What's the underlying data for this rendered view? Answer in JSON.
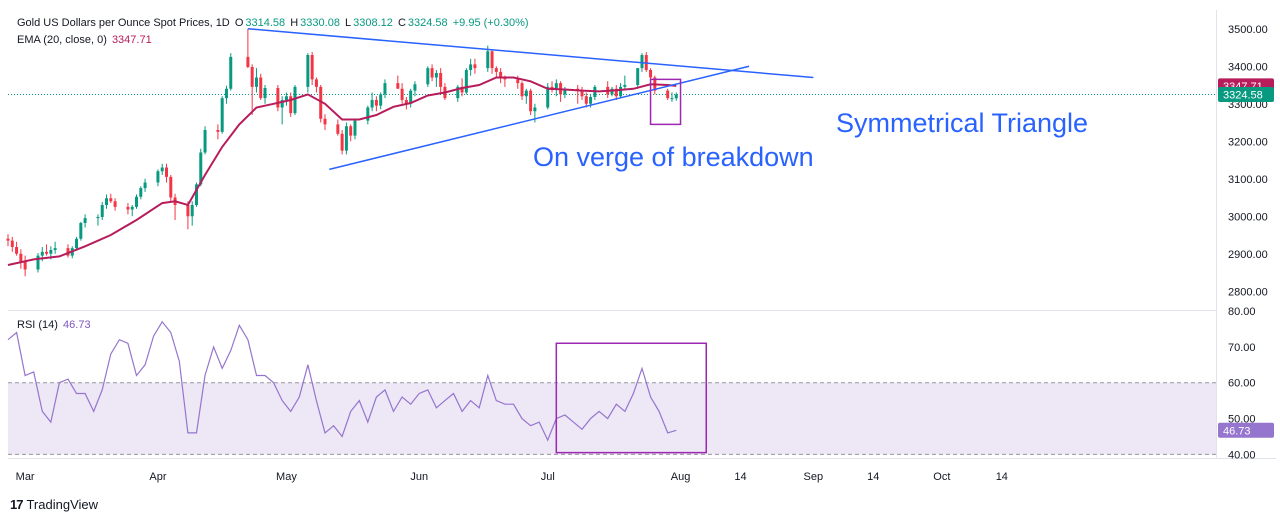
{
  "header": {
    "title": "Gold US Dollars per Ounce Spot Prices, 1D",
    "open_label": "O",
    "open": "3314.58",
    "high_label": "H",
    "high": "3330.08",
    "low_label": "L",
    "low": "3308.12",
    "close_label": "C",
    "close": "3324.58",
    "change": "+9.95 (+0.30%)",
    "ema_label": "EMA (20, close, 0)",
    "ema_value": "3347.71",
    "rsi_label": "RSI (14)",
    "rsi_value": "46.73"
  },
  "annotations": {
    "pattern": "Symmetrical Triangle",
    "status": "On verge of breakdown"
  },
  "branding": {
    "logo_text": "TradingView"
  },
  "price_badges": {
    "ema": "3347.71",
    "last": "3324.58",
    "rsi": "46.73"
  },
  "colors": {
    "up": "#089981",
    "down": "#f23645",
    "ema": "#b71c5b",
    "rsi": "#9575cd",
    "box": "#9c27b0",
    "trendline": "#2962ff",
    "annotation_text": "#2962ff",
    "rsi_band": "#ede7f6"
  },
  "chart_data": [
    {
      "type": "candlestick",
      "title": "Gold US Dollars per Ounce Spot Prices, 1D",
      "x_tick_labels": [
        "Mar",
        "Apr",
        "May",
        "Jun",
        "Jul",
        "Aug",
        "14",
        "Sep",
        "14",
        "Oct",
        "14"
      ],
      "x_tick_days": [
        28,
        59,
        89,
        120,
        150,
        181,
        195,
        212,
        226,
        242,
        256
      ],
      "y_ticks": [
        2800,
        2900,
        3000,
        3100,
        3200,
        3300,
        3400,
        3500
      ],
      "ylim": [
        2750,
        3550
      ],
      "xlim_days": [
        24,
        306
      ],
      "candles_note": "day index counted from 1 Feb 2025; [day, open, high, low, close]",
      "candles": [
        [
          24,
          2940,
          2952,
          2920,
          2935
        ],
        [
          25,
          2935,
          2945,
          2905,
          2918
        ],
        [
          26,
          2918,
          2932,
          2895,
          2900
        ],
        [
          27,
          2900,
          2912,
          2860,
          2878
        ],
        [
          28,
          2878,
          2895,
          2840,
          2858
        ],
        [
          31,
          2858,
          2902,
          2850,
          2895
        ],
        [
          32,
          2895,
          2918,
          2880,
          2905
        ],
        [
          33,
          2905,
          2925,
          2895,
          2900
        ],
        [
          34,
          2900,
          2920,
          2885,
          2910
        ],
        [
          35,
          2910,
          2932,
          2900,
          2915
        ],
        [
          38,
          2915,
          2925,
          2890,
          2895
        ],
        [
          39,
          2895,
          2920,
          2888,
          2915
        ],
        [
          40,
          2915,
          2945,
          2910,
          2940
        ],
        [
          41,
          2940,
          2985,
          2935,
          2982
        ],
        [
          42,
          2982,
          3005,
          2970,
          2995
        ],
        [
          45,
          2995,
          3005,
          2975,
          2998
        ],
        [
          46,
          2998,
          3038,
          2990,
          3030
        ],
        [
          47,
          3030,
          3058,
          3020,
          3048
        ],
        [
          48,
          3048,
          3060,
          3035,
          3040
        ],
        [
          49,
          3040,
          3048,
          3015,
          3025
        ],
        [
          52,
          3025,
          3035,
          3005,
          3018
        ],
        [
          53,
          3018,
          3030,
          3000,
          3025
        ],
        [
          54,
          3025,
          3058,
          3020,
          3052
        ],
        [
          55,
          3052,
          3080,
          3045,
          3075
        ],
        [
          56,
          3075,
          3100,
          3065,
          3090
        ],
        [
          59,
          3090,
          3125,
          3080,
          3120
        ],
        [
          60,
          3120,
          3140,
          3110,
          3130
        ],
        [
          61,
          3130,
          3140,
          3090,
          3105
        ],
        [
          62,
          3105,
          3110,
          3040,
          3050
        ],
        [
          63,
          3050,
          3060,
          2990,
          3030
        ],
        [
          66,
          3030,
          3040,
          2965,
          3000
        ],
        [
          67,
          3000,
          3040,
          2975,
          3030
        ],
        [
          68,
          3030,
          3090,
          3025,
          3085
        ],
        [
          69,
          3085,
          3180,
          3080,
          3170
        ],
        [
          70,
          3170,
          3240,
          3165,
          3230
        ],
        [
          73,
          3230,
          3245,
          3205,
          3225
        ],
        [
          74,
          3225,
          3320,
          3220,
          3315
        ],
        [
          75,
          3315,
          3348,
          3300,
          3340
        ],
        [
          76,
          3340,
          3435,
          3335,
          3425
        ],
        [
          80,
          3425,
          3500,
          3395,
          3398
        ],
        [
          81,
          3398,
          3405,
          3270,
          3345
        ],
        [
          82,
          3345,
          3395,
          3330,
          3370
        ],
        [
          83,
          3370,
          3380,
          3310,
          3315
        ],
        [
          84,
          3315,
          3350,
          3300,
          3342
        ],
        [
          87,
          3342,
          3350,
          3280,
          3290
        ],
        [
          88,
          3290,
          3320,
          3245,
          3310
        ],
        [
          89,
          3310,
          3330,
          3295,
          3320
        ],
        [
          90,
          3320,
          3330,
          3265,
          3275
        ],
        [
          91,
          3275,
          3350,
          3270,
          3345
        ],
        [
          94,
          3345,
          3435,
          3330,
          3430
        ],
        [
          95,
          3430,
          3438,
          3350,
          3365
        ],
        [
          96,
          3365,
          3370,
          3330,
          3345
        ],
        [
          97,
          3345,
          3350,
          3250,
          3260
        ],
        [
          98,
          3260,
          3272,
          3230,
          3245
        ],
        [
          101,
          3245,
          3258,
          3215,
          3220
        ],
        [
          102,
          3220,
          3230,
          3165,
          3175
        ],
        [
          103,
          3175,
          3250,
          3165,
          3240
        ],
        [
          104,
          3240,
          3245,
          3200,
          3215
        ],
        [
          105,
          3215,
          3260,
          3205,
          3255
        ],
        [
          108,
          3255,
          3295,
          3245,
          3290
        ],
        [
          109,
          3290,
          3330,
          3280,
          3310
        ],
        [
          110,
          3310,
          3320,
          3280,
          3295
        ],
        [
          111,
          3295,
          3330,
          3285,
          3325
        ],
        [
          112,
          3325,
          3365,
          3315,
          3355
        ],
        [
          115,
          3355,
          3375,
          3340,
          3340
        ],
        [
          116,
          3340,
          3355,
          3300,
          3310
        ],
        [
          117,
          3310,
          3318,
          3285,
          3300
        ],
        [
          118,
          3300,
          3340,
          3290,
          3335
        ],
        [
          119,
          3335,
          3360,
          3320,
          3352
        ],
        [
          122,
          3352,
          3400,
          3345,
          3395
        ],
        [
          123,
          3395,
          3405,
          3360,
          3370
        ],
        [
          124,
          3370,
          3390,
          3345,
          3382
        ],
        [
          125,
          3382,
          3395,
          3330,
          3345
        ],
        [
          126,
          3345,
          3355,
          3310,
          3315
        ],
        [
          129,
          3315,
          3350,
          3305,
          3345
        ],
        [
          130,
          3345,
          3368,
          3320,
          3330
        ],
        [
          131,
          3330,
          3395,
          3325,
          3390
        ],
        [
          132,
          3390,
          3420,
          3375,
          3405
        ],
        [
          133,
          3405,
          3420,
          3380,
          3395
        ],
        [
          136,
          3395,
          3455,
          3385,
          3440
        ],
        [
          137,
          3440,
          3445,
          3380,
          3395
        ],
        [
          138,
          3395,
          3400,
          3370,
          3385
        ],
        [
          139,
          3385,
          3395,
          3355,
          3370
        ],
        [
          140,
          3370,
          3375,
          3345,
          3365
        ],
        [
          143,
          3365,
          3375,
          3340,
          3355
        ],
        [
          144,
          3355,
          3360,
          3310,
          3320
        ],
        [
          145,
          3320,
          3340,
          3300,
          3335
        ],
        [
          146,
          3335,
          3340,
          3270,
          3280
        ],
        [
          147,
          3280,
          3300,
          3250,
          3290
        ],
        [
          150,
          3290,
          3355,
          3285,
          3345
        ],
        [
          151,
          3345,
          3360,
          3330,
          3340
        ],
        [
          152,
          3340,
          3365,
          3320,
          3355
        ],
        [
          153,
          3355,
          3360,
          3305,
          3325
        ],
        [
          154,
          3325,
          3345,
          3315,
          3340
        ],
        [
          157,
          3340,
          3350,
          3300,
          3335
        ],
        [
          158,
          3335,
          3345,
          3310,
          3320
        ],
        [
          159,
          3320,
          3330,
          3290,
          3300
        ],
        [
          160,
          3300,
          3325,
          3290,
          3318
        ],
        [
          161,
          3318,
          3350,
          3310,
          3345
        ],
        [
          164,
          3345,
          3360,
          3315,
          3325
        ],
        [
          165,
          3325,
          3345,
          3320,
          3340
        ],
        [
          166,
          3340,
          3350,
          3310,
          3320
        ],
        [
          167,
          3320,
          3355,
          3315,
          3345
        ],
        [
          168,
          3345,
          3375,
          3340,
          3350
        ],
        [
          171,
          3350,
          3395,
          3340,
          3395
        ],
        [
          172,
          3395,
          3435,
          3385,
          3430
        ],
        [
          173,
          3430,
          3438,
          3385,
          3390
        ],
        [
          174,
          3390,
          3395,
          3365,
          3370
        ],
        [
          175,
          3370,
          3375,
          3325,
          3335
        ],
        [
          178,
          3335,
          3340,
          3310,
          3315
        ],
        [
          179,
          3315,
          3330,
          3305,
          3315
        ],
        [
          180,
          3314.58,
          3330.08,
          3308.12,
          3324.58
        ]
      ],
      "ema": [
        [
          24,
          2870
        ],
        [
          30,
          2885
        ],
        [
          36,
          2893
        ],
        [
          42,
          2920
        ],
        [
          48,
          2950
        ],
        [
          54,
          2990
        ],
        [
          60,
          3035
        ],
        [
          63,
          3040
        ],
        [
          66,
          3030
        ],
        [
          70,
          3110
        ],
        [
          74,
          3185
        ],
        [
          78,
          3245
        ],
        [
          82,
          3290
        ],
        [
          86,
          3300
        ],
        [
          90,
          3310
        ],
        [
          94,
          3325
        ],
        [
          98,
          3300
        ],
        [
          102,
          3258
        ],
        [
          106,
          3258
        ],
        [
          110,
          3270
        ],
        [
          114,
          3292
        ],
        [
          118,
          3302
        ],
        [
          122,
          3322
        ],
        [
          126,
          3330
        ],
        [
          130,
          3342
        ],
        [
          134,
          3350
        ],
        [
          138,
          3370
        ],
        [
          142,
          3370
        ],
        [
          146,
          3360
        ],
        [
          150,
          3340
        ],
        [
          154,
          3338
        ],
        [
          158,
          3335
        ],
        [
          162,
          3333
        ],
        [
          166,
          3336
        ],
        [
          170,
          3340
        ],
        [
          174,
          3352
        ],
        [
          178,
          3350
        ],
        [
          180,
          3347.71
        ]
      ],
      "trendlines": [
        {
          "from": [
            80,
            3500
          ],
          "to": [
            212,
            3370
          ]
        },
        {
          "from": [
            99,
            3125
          ],
          "to": [
            197,
            3400
          ]
        }
      ],
      "highlight_box": {
        "x": [
          174,
          181
        ],
        "y": [
          3245,
          3365
        ]
      }
    },
    {
      "type": "line",
      "title": "RSI (14)",
      "y_ticks": [
        40,
        50,
        60,
        70,
        80
      ],
      "ylim": [
        39,
        80
      ],
      "band": [
        40,
        60
      ],
      "series_points_note": "[day, RSI]",
      "values": [
        [
          24,
          72
        ],
        [
          26,
          74
        ],
        [
          28,
          62
        ],
        [
          30,
          63
        ],
        [
          32,
          52
        ],
        [
          34,
          49
        ],
        [
          36,
          60
        ],
        [
          38,
          61
        ],
        [
          40,
          57
        ],
        [
          42,
          57
        ],
        [
          44,
          52
        ],
        [
          46,
          58
        ],
        [
          48,
          68
        ],
        [
          50,
          72
        ],
        [
          52,
          71
        ],
        [
          54,
          62
        ],
        [
          56,
          65
        ],
        [
          58,
          73
        ],
        [
          60,
          77
        ],
        [
          62,
          74
        ],
        [
          64,
          66
        ],
        [
          66,
          46
        ],
        [
          68,
          46
        ],
        [
          70,
          62
        ],
        [
          72,
          70
        ],
        [
          74,
          64
        ],
        [
          76,
          69
        ],
        [
          78,
          76
        ],
        [
          80,
          72
        ],
        [
          82,
          62
        ],
        [
          84,
          62
        ],
        [
          86,
          60
        ],
        [
          88,
          55
        ],
        [
          90,
          52
        ],
        [
          92,
          56
        ],
        [
          94,
          65
        ],
        [
          96,
          55
        ],
        [
          98,
          46
        ],
        [
          100,
          48
        ],
        [
          102,
          45
        ],
        [
          104,
          52
        ],
        [
          106,
          55
        ],
        [
          108,
          49
        ],
        [
          110,
          56
        ],
        [
          112,
          58
        ],
        [
          114,
          52
        ],
        [
          116,
          56
        ],
        [
          118,
          54
        ],
        [
          120,
          57
        ],
        [
          122,
          58
        ],
        [
          124,
          53
        ],
        [
          126,
          55
        ],
        [
          128,
          57
        ],
        [
          130,
          52
        ],
        [
          132,
          55
        ],
        [
          134,
          53
        ],
        [
          136,
          62
        ],
        [
          138,
          55
        ],
        [
          140,
          54
        ],
        [
          142,
          54
        ],
        [
          144,
          50
        ],
        [
          146,
          48
        ],
        [
          148,
          49
        ],
        [
          150,
          44
        ],
        [
          152,
          50
        ],
        [
          154,
          51
        ],
        [
          156,
          49
        ],
        [
          158,
          47
        ],
        [
          160,
          50
        ],
        [
          162,
          52
        ],
        [
          164,
          50
        ],
        [
          166,
          54
        ],
        [
          168,
          52
        ],
        [
          170,
          57
        ],
        [
          172,
          64
        ],
        [
          174,
          56
        ],
        [
          176,
          52
        ],
        [
          178,
          46
        ],
        [
          180,
          46.73
        ]
      ],
      "highlight_box": {
        "x": [
          152,
          187
        ],
        "y": [
          40.5,
          71
        ]
      }
    }
  ],
  "axis": {
    "price_ticks": [
      "3500.00",
      "3400.00",
      "3300.00",
      "3200.00",
      "3100.00",
      "3000.00",
      "2900.00",
      "2800.00"
    ],
    "rsi_ticks": [
      "80.00",
      "70.00",
      "60.00",
      "50.00",
      "40.00"
    ],
    "x_labels": [
      "Mar",
      "Apr",
      "May",
      "Jun",
      "Jul",
      "Aug",
      "14",
      "Sep",
      "14",
      "Oct",
      "14"
    ]
  }
}
